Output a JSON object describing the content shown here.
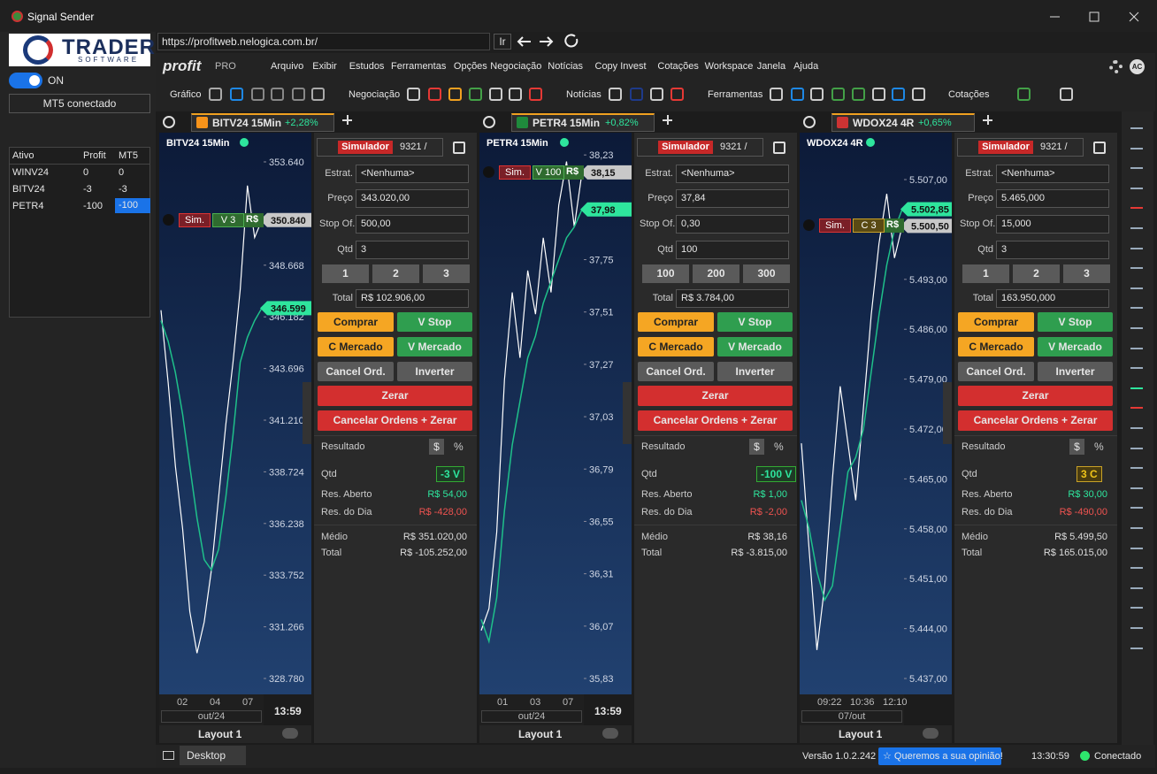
{
  "window": {
    "title": "Signal Sender"
  },
  "sidebar": {
    "logo": "TRADER",
    "logo_sub": "SOFTWARE",
    "toggle": "ON",
    "status": "MT5 conectado",
    "table": {
      "header": [
        "Ativo",
        "Profit",
        "MT5"
      ],
      "rows": [
        [
          "WINV24",
          "0",
          "0"
        ],
        [
          "BITV24",
          "-3",
          "-3"
        ],
        [
          "PETR4",
          "-100",
          "-100"
        ]
      ]
    }
  },
  "browser": {
    "url": "https://profitweb.nelogica.com.br/",
    "go": "Ir"
  },
  "app": {
    "brand": "profit",
    "brand_sub": "PRO",
    "avatar": "AC",
    "menu": [
      "Arquivo",
      "Exibir",
      "Estudos",
      "Ferramentas",
      "Opções",
      "Negociação",
      "Notícias",
      "Copy Invest",
      "Cotações",
      "Workspace",
      "Janela",
      "Ajuda"
    ],
    "toolbar": [
      "Gráfico",
      "Negociação",
      "Notícias",
      "Ferramentas",
      "Cotações"
    ]
  },
  "order_labels": {
    "mode": "Simulador",
    "strategy": "Estrat.",
    "price": "Preço",
    "stop": "Stop Of.",
    "qty": "Qtd",
    "total": "Total",
    "buy": "Comprar",
    "sell_stop": "V Stop",
    "buy_market": "C Mercado",
    "sell_market": "V Mercado",
    "cancel": "Cancel Ord.",
    "invert": "Inverter",
    "flat": "Zerar",
    "cancel_flat": "Cancelar Ordens + Zerar",
    "result": "Resultado",
    "currency": "$",
    "percent": "%",
    "pos_qty": "Qtd",
    "open": "Res. Aberto",
    "day": "Res. do Dia",
    "avg": "Médio",
    "sum": "Total"
  },
  "panels": [
    {
      "tab": "BITV24 15Min",
      "change": "+2,28%",
      "clock": "13:59",
      "layout": "Layout 1",
      "position": {
        "sim": "Sim.",
        "side": "V 3",
        "pnl": "R$"
      },
      "chart": {
        "type": "line",
        "title": "BITV24 15Min",
        "ylim": [
          328014,
          355045
        ],
        "yticks": [
          {
            "value": 353640,
            "label": "353.640"
          },
          {
            "value": 348668,
            "label": "348.668"
          },
          {
            "value": 346182,
            "label": "346.182"
          },
          {
            "value": 343696,
            "label": "343.696"
          },
          {
            "value": 341210,
            "label": "341.210"
          },
          {
            "value": 338724,
            "label": "338.724"
          },
          {
            "value": 336238,
            "label": "336.238"
          },
          {
            "value": 333752,
            "label": "333.752"
          },
          {
            "value": 331266,
            "label": "331.266"
          },
          {
            "value": 328780,
            "label": "328.780"
          }
        ],
        "series": [
          {
            "color": "#ffffff",
            "values": [
              346500,
              343000,
              339000,
              336000,
              332000,
              330000,
              331500,
              334000,
              337500,
              341000,
              344000,
              347500,
              352500,
              350000,
              350840
            ]
          },
          {
            "color": "#1fc08a",
            "values": [
              346000,
              345000,
              343500,
              341500,
              339000,
              336500,
              334500,
              334000,
              335000,
              337500,
              340500,
              344000,
              345200,
              346000,
              346599
            ]
          }
        ],
        "price_tags": [
          {
            "value": 350840,
            "label": "350.840",
            "color": "#c8c8c8"
          },
          {
            "value": 346599,
            "label": "346.599",
            "color": "#2ee59d"
          }
        ],
        "xticks": [
          "02",
          "04",
          "07"
        ],
        "period": "out/24"
      },
      "order": {
        "account": "9321 /",
        "strategy": "<Nenhuma>",
        "price": "343.020,00",
        "stop": "500,00",
        "qty": "3",
        "quick": [
          "1",
          "2",
          "3"
        ],
        "total": "R$ 102.906,00",
        "position": "-3 V",
        "position_color": "#2ee59d",
        "open": "R$ 54,00",
        "day": "R$ -428,00",
        "avg": "R$ 351.020,00",
        "sum": "R$ -105.252,00"
      }
    },
    {
      "tab": "PETR4 15Min",
      "change": "+0,82%",
      "clock": "13:59",
      "layout": "Layout 1",
      "position": {
        "sim": "Sim.",
        "side": "V 100",
        "pnl": "R$"
      },
      "chart": {
        "type": "line",
        "title": "PETR4 15Min",
        "ylim": [
          35.757,
          38.332
        ],
        "yticks": [
          {
            "value": 38.23,
            "label": "38,23"
          },
          {
            "value": 37.75,
            "label": "37,75"
          },
          {
            "value": 37.51,
            "label": "37,51"
          },
          {
            "value": 37.27,
            "label": "37,27"
          },
          {
            "value": 37.03,
            "label": "37,03"
          },
          {
            "value": 36.79,
            "label": "36,79"
          },
          {
            "value": 36.55,
            "label": "36,55"
          },
          {
            "value": 36.31,
            "label": "36,31"
          },
          {
            "value": 36.07,
            "label": "36,07"
          },
          {
            "value": 35.83,
            "label": "35,83"
          }
        ],
        "series": [
          {
            "color": "#ffffff",
            "values": [
              36.05,
              36.15,
              36.5,
              37.2,
              37.6,
              37.3,
              37.7,
              37.5,
              37.85,
              37.6,
              38.0,
              38.2,
              37.9,
              38.15
            ]
          },
          {
            "color": "#1fc08a",
            "values": [
              36.1,
              36.0,
              36.2,
              36.6,
              36.9,
              37.1,
              37.3,
              37.4,
              37.55,
              37.65,
              37.75,
              37.85,
              37.9,
              37.98
            ]
          }
        ],
        "price_tags": [
          {
            "value": 38.15,
            "label": "38,15",
            "color": "#c8c8c8"
          },
          {
            "value": 37.98,
            "label": "37,98",
            "color": "#2ee59d"
          }
        ],
        "xticks": [
          "01",
          "03",
          "07"
        ],
        "period": "out/24"
      },
      "order": {
        "account": "9321 /",
        "strategy": "<Nenhuma>",
        "price": "37,84",
        "stop": "0,30",
        "qty": "100",
        "quick": [
          "100",
          "200",
          "300"
        ],
        "total": "R$ 3.784,00",
        "position": "-100 V",
        "position_color": "#2ee59d",
        "open": "R$ 1,00",
        "day": "R$ -2,00",
        "avg": "R$ 38,16",
        "sum": "R$ -3.815,00"
      }
    },
    {
      "tab": "WDOX24 4R",
      "change": "+0,65%",
      "layout": "Layout 1",
      "position": {
        "sim": "Sim.",
        "side": "C 3",
        "pnl": "R$"
      },
      "chart": {
        "type": "line",
        "title": "WDOX24 4R",
        "ylim": [
          5434.77,
          5513.58
        ],
        "yticks": [
          {
            "value": 5507,
            "label": "5.507,00"
          },
          {
            "value": 5493,
            "label": "5.493,00"
          },
          {
            "value": 5486,
            "label": "5.486,00"
          },
          {
            "value": 5479,
            "label": "5.479,00"
          },
          {
            "value": 5472,
            "label": "5.472,00"
          },
          {
            "value": 5465,
            "label": "5.465,00"
          },
          {
            "value": 5458,
            "label": "5.458,00"
          },
          {
            "value": 5451,
            "label": "5.451,00"
          },
          {
            "value": 5444,
            "label": "5.444,00"
          },
          {
            "value": 5437,
            "label": "5.437,00"
          }
        ],
        "series": [
          {
            "color": "#ffffff",
            "values": [
              5470,
              5455,
              5441,
              5450,
              5465,
              5478,
              5470,
              5462,
              5475,
              5488,
              5498,
              5505,
              5496,
              5500.5
            ]
          },
          {
            "color": "#1fc08a",
            "values": [
              5462,
              5458,
              5452,
              5448,
              5450,
              5458,
              5466,
              5468,
              5472,
              5480,
              5488,
              5495,
              5500,
              5502.85
            ]
          }
        ],
        "price_tags": [
          {
            "value": 5502.85,
            "label": "5.502,85",
            "color": "#2ee59d"
          },
          {
            "value": 5500.5,
            "label": "5.500,50",
            "color": "#c8c8c8"
          }
        ],
        "xticks": [
          "09:22",
          "10:36",
          "12:10"
        ],
        "period": "07/out"
      },
      "order": {
        "account": "9321 /",
        "strategy": "<Nenhuma>",
        "price": "5.465,000",
        "stop": "15,000",
        "qty": "3",
        "quick": [
          "1",
          "2",
          "3"
        ],
        "total": "163.950,000",
        "position": "3 C",
        "position_color": "#f0c419",
        "open": "R$ 30,00",
        "day": "R$ -490,00",
        "avg": "R$ 5.499,50",
        "sum": "R$ 165.015,00"
      }
    }
  ],
  "status": {
    "tab": "Desktop",
    "version": "Versão 1.0.2.242",
    "feedback": "☆ Queremos a sua opinião!",
    "time": "13:30:59",
    "connection": "Conectado"
  }
}
